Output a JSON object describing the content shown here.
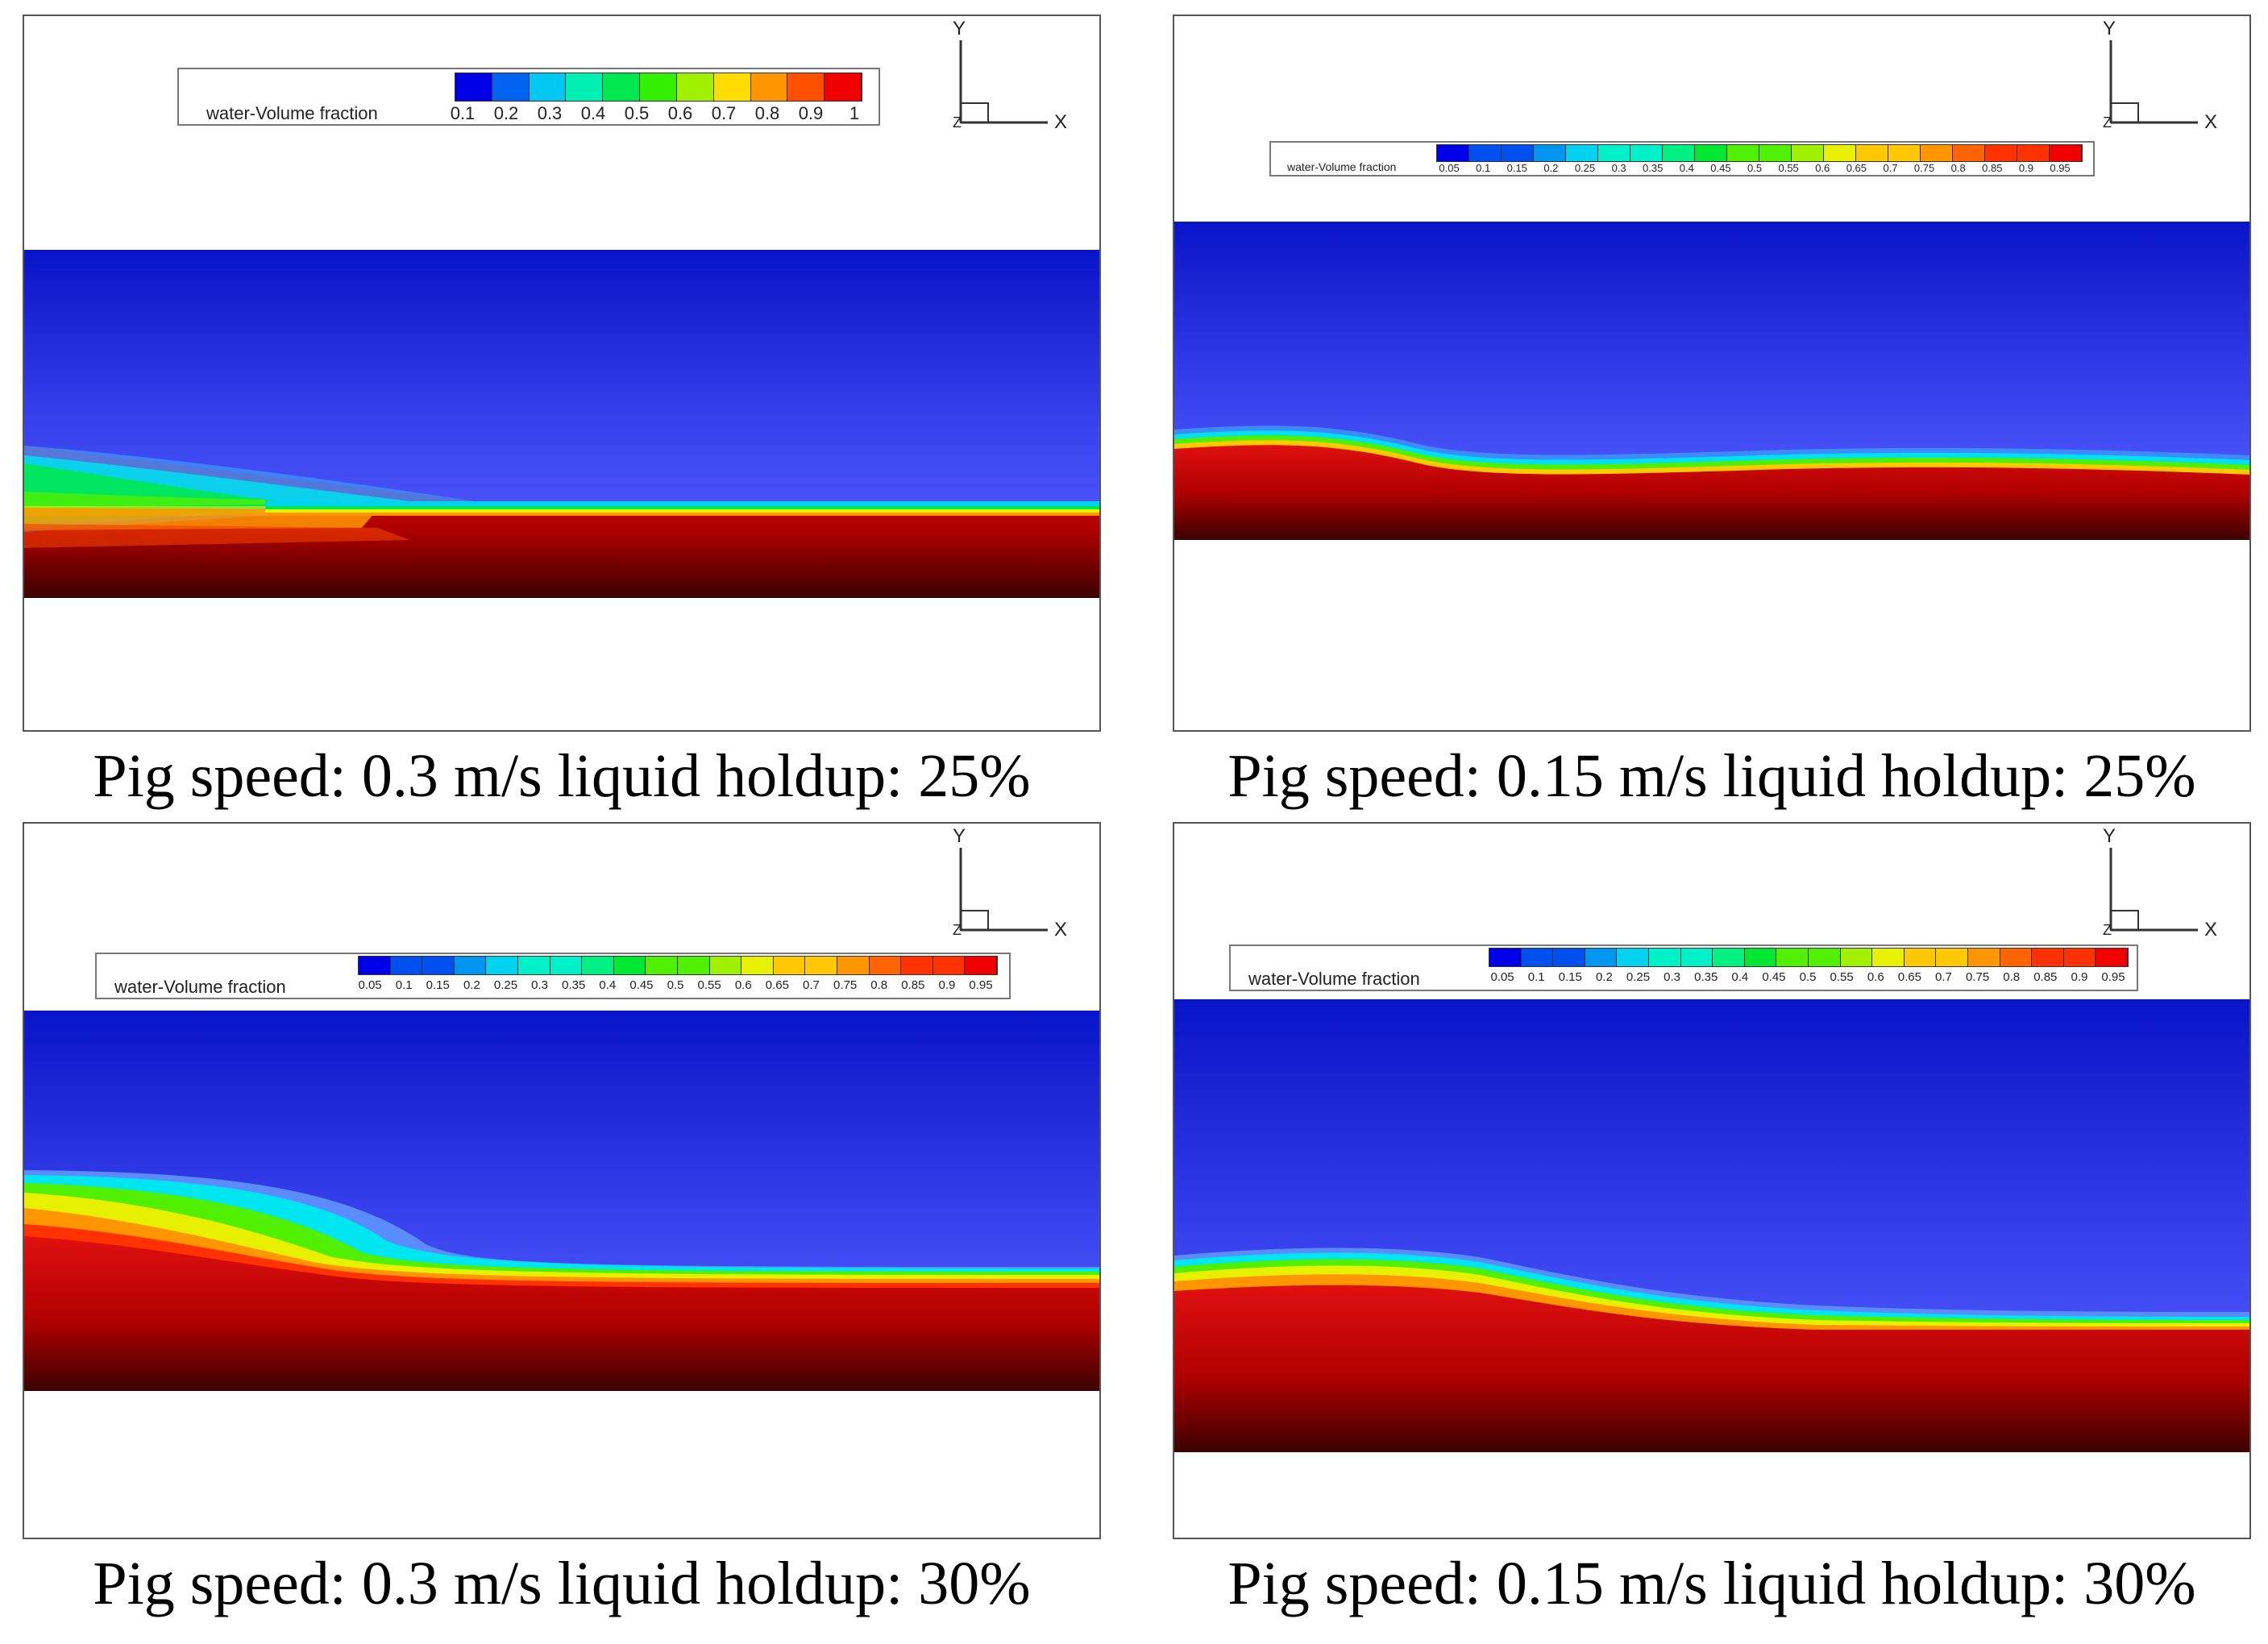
{
  "colors": {
    "scale": [
      "#0000e8",
      "#0050f0",
      "#0096f0",
      "#00d2f0",
      "#00f0c8",
      "#00f082",
      "#00e832",
      "#50f000",
      "#a0f000",
      "#e6f000",
      "#ffc800",
      "#ff9600",
      "#ff6400",
      "#ff3200",
      "#f00000"
    ],
    "scale10": [
      "#0000e8",
      "#0064f0",
      "#00c8f0",
      "#00f0b4",
      "#00e850",
      "#32f000",
      "#a0f000",
      "#ffdc00",
      "#ff9600",
      "#ff5000",
      "#f00000"
    ]
  },
  "legend_title": "water-Volume fraction",
  "legend_ticks_a": [
    "0.1",
    "0.2",
    "0.3",
    "0.4",
    "0.5",
    "0.6",
    "0.7",
    "0.8",
    "0.9",
    "1"
  ],
  "legend_ticks_b": [
    "0.05",
    "0.1",
    "0.15",
    "0.2",
    "0.25",
    "0.3",
    "0.35",
    "0.4",
    "0.45",
    "0.5",
    "0.55",
    "0.6",
    "0.65",
    "0.7",
    "0.75",
    "0.8",
    "0.85",
    "0.9",
    "0.95"
  ],
  "axis": {
    "y": "Y",
    "x": "X",
    "z": "Z"
  },
  "panels": [
    {
      "caption": "Pig speed: 0.3 m/s liquid holdup: 25%"
    },
    {
      "caption": "Pig speed: 0.15 m/s liquid holdup: 25%"
    },
    {
      "caption": "Pig speed: 0.3 m/s liquid holdup: 30%"
    },
    {
      "caption": "Pig speed: 0.15 m/s liquid holdup: 30%"
    }
  ]
}
